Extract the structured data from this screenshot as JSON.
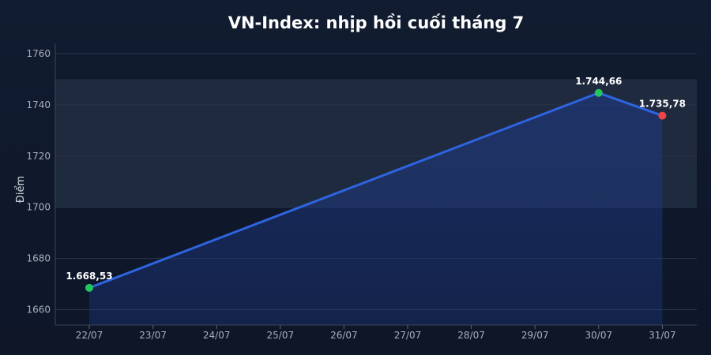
{
  "chart_data": {
    "type": "line",
    "title": "VN-Index: nhịp hồi cuối tháng 7",
    "xlabel": "",
    "ylabel": "Điểm",
    "categories": [
      "22/07",
      "23/07",
      "24/07",
      "25/07",
      "26/07",
      "27/07",
      "28/07",
      "29/07",
      "30/07",
      "31/07"
    ],
    "points": [
      {
        "x": "22/07",
        "y": 1668.53,
        "label": "1.668,53",
        "marker_color": "#22c55e"
      },
      {
        "x": "30/07",
        "y": 1744.66,
        "label": "1.744,66",
        "marker_color": "#22c55e"
      },
      {
        "x": "31/07",
        "y": 1735.78,
        "label": "1.735,78",
        "marker_color": "#ef4444"
      }
    ],
    "yticks": [
      1660,
      1680,
      1700,
      1720,
      1740,
      1760
    ],
    "ylim": [
      1654,
      1764
    ],
    "highlight_band": [
      1700,
      1750
    ],
    "grid": true,
    "colors": {
      "line": "#2f64e0",
      "area": "#1e3a8a",
      "background": "#0f172a",
      "band": "#243044",
      "up": "#22c55e",
      "down": "#ef4444"
    }
  }
}
